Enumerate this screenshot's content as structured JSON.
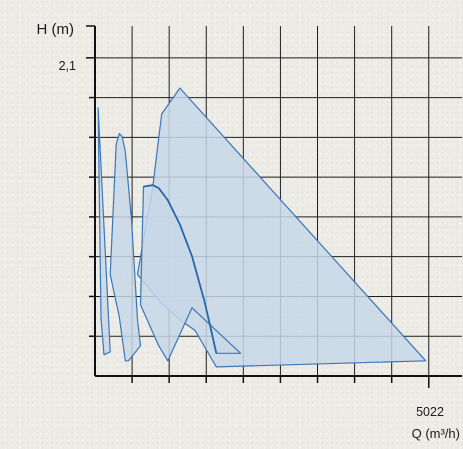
{
  "chart_data": {
    "type": "area",
    "title": "",
    "ylabel": "H (m)",
    "xlabel": "Q (m³/h)",
    "y_tick_label": "2,1",
    "x_tick_label": "5022",
    "y_tick_value": 2.1,
    "x_tick_value": 5022,
    "xlim": [
      0,
      5522
    ],
    "ylim": [
      0,
      2.31
    ],
    "grid": true,
    "fill_color": "#c8d7e6",
    "line_color": "#3a78b8",
    "series": [
      {
        "points": [
          [
            46,
            1.77
          ],
          [
            91,
            0.38
          ],
          [
            136,
            0.14
          ],
          [
            228,
            0.16
          ],
          [
            46,
            1.77
          ]
        ]
      },
      {
        "points": [
          [
            319,
            1.53
          ],
          [
            365,
            1.6
          ],
          [
            410,
            1.58
          ],
          [
            456,
            1.48
          ],
          [
            547,
            1.04
          ],
          [
            639,
            0.37
          ],
          [
            684,
            0.2
          ],
          [
            502,
            0.1
          ],
          [
            456,
            0.1
          ],
          [
            365,
            0.39
          ],
          [
            228,
            0.67
          ],
          [
            319,
            1.53
          ]
        ]
      },
      {
        "points": [
          [
            1004,
            1.73
          ],
          [
            1278,
            1.9
          ],
          [
            4976,
            0.1
          ],
          [
            1825,
            0.06
          ],
          [
            1506,
            0.3
          ],
          [
            1278,
            0.37
          ],
          [
            1004,
            0.48
          ],
          [
            639,
            0.67
          ],
          [
            776,
            1.02
          ],
          [
            867,
            1.24
          ],
          [
            1004,
            1.73
          ]
        ]
      },
      {
        "points": [
          [
            730,
            1.25
          ],
          [
            867,
            1.26
          ],
          [
            958,
            1.24
          ],
          [
            1095,
            1.16
          ],
          [
            1278,
            1.0
          ],
          [
            1460,
            0.79
          ],
          [
            1643,
            0.5
          ],
          [
            1734,
            0.33
          ],
          [
            1825,
            0.15
          ],
          [
            2008,
            0.15
          ],
          [
            2191,
            0.15
          ],
          [
            1460,
            0.45
          ],
          [
            1095,
            0.1
          ],
          [
            958,
            0.2
          ],
          [
            684,
            0.47
          ],
          [
            730,
            1.25
          ]
        ]
      }
    ],
    "overlay_curve": [
      [
        730,
        1.25
      ],
      [
        867,
        1.26
      ],
      [
        958,
        1.24
      ],
      [
        1095,
        1.16
      ],
      [
        1278,
        1.0
      ],
      [
        1460,
        0.79
      ],
      [
        1643,
        0.5
      ],
      [
        1734,
        0.33
      ],
      [
        1825,
        0.15
      ]
    ]
  }
}
